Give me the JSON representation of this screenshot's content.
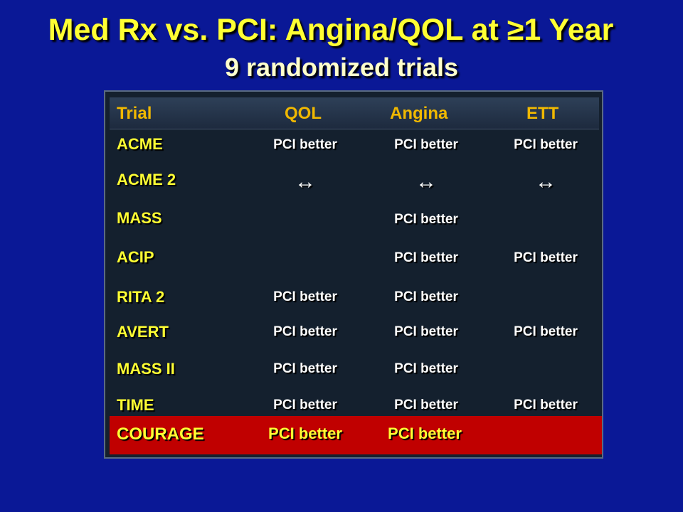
{
  "slide": {
    "title": "Med Rx vs. PCI: Angina/QOL at ≥1 Year",
    "subtitle": "9 randomized trials"
  },
  "table": {
    "headers": [
      "Trial",
      "QOL",
      "Angina",
      "ETT"
    ],
    "rows": [
      {
        "trial": "ACME",
        "qol": "PCI better",
        "angina": "PCI better",
        "ett": "PCI better"
      },
      {
        "trial": "ACME 2",
        "qol": "↔",
        "angina": "↔",
        "ett": "↔"
      },
      {
        "trial": "MASS",
        "qol": "",
        "angina": "PCI better",
        "ett": ""
      },
      {
        "trial": "ACIP",
        "qol": "",
        "angina": "PCI better",
        "ett": "PCI better"
      },
      {
        "trial": "RITA 2",
        "qol": "PCI better",
        "angina": "PCI better",
        "ett": ""
      },
      {
        "trial": "AVERT",
        "qol": "PCI better",
        "angina": "PCI better",
        "ett": "PCI better"
      },
      {
        "trial": "MASS II",
        "qol": "PCI better",
        "angina": "PCI better",
        "ett": ""
      },
      {
        "trial": "TIME",
        "qol": "PCI better",
        "angina": "PCI better",
        "ett": "PCI better"
      }
    ],
    "highlight_row": {
      "trial": "COURAGE",
      "qol": "PCI better",
      "angina": "PCI better",
      "ett": ""
    }
  },
  "colors": {
    "background": "#0a1896",
    "title": "#ffff33",
    "header_text": "#f0b800",
    "highlight": "#c00000"
  }
}
